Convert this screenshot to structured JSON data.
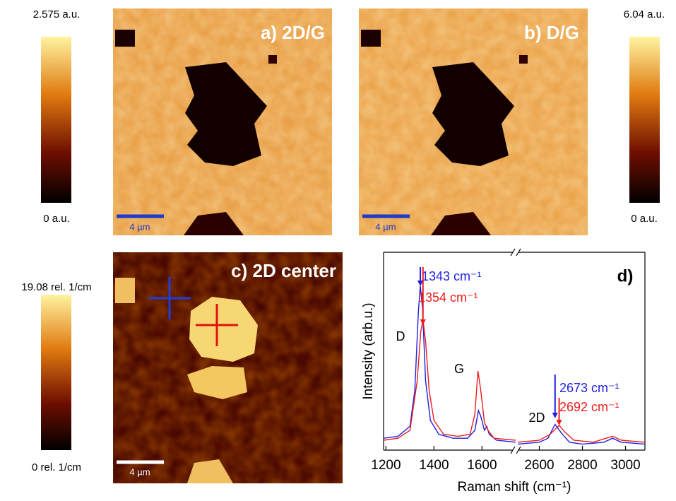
{
  "maps": [
    {
      "label": "a) 2D/G",
      "scale_bar": "4 µm"
    },
    {
      "label": "b) D/G",
      "scale_bar": "4 µm"
    },
    {
      "label": "c) 2D center",
      "scale_bar": "4 µm"
    }
  ],
  "colorbars": [
    {
      "max_label": "2.575 a.u.",
      "min_label": "0 a.u."
    },
    {
      "max_label": "6.04 a.u.",
      "min_label": "0 a.u."
    },
    {
      "max_label": "19.08 rel. 1/cm",
      "min_label": "0 rel. 1/cm"
    }
  ],
  "chart_data": {
    "type": "line",
    "panel_label": "d)",
    "x_label": "Raman shift (cm⁻¹)",
    "y_label": "Intensity (arb.u.)",
    "xlim_segments": [
      [
        1190,
        1740
      ],
      [
        2500,
        3090
      ]
    ],
    "xticks": [
      1200,
      1400,
      1600,
      2600,
      2800,
      3000
    ],
    "ylim": [
      0,
      1
    ],
    "peak_labels": [
      "D",
      "G",
      "2D"
    ],
    "series": [
      {
        "color": "#1f1fe0",
        "x": [
          1190,
          1250,
          1300,
          1320,
          1335,
          1343,
          1352,
          1365,
          1385,
          1420,
          1480,
          1540,
          1570,
          1585,
          1595,
          1610,
          1620,
          1630,
          1660,
          1740,
          2000,
          2500,
          2600,
          2640,
          2673,
          2700,
          2740,
          2800,
          2900,
          2940,
          2980,
          3090
        ],
        "values": [
          0.06,
          0.07,
          0.12,
          0.3,
          0.7,
          0.83,
          0.72,
          0.35,
          0.15,
          0.08,
          0.06,
          0.06,
          0.1,
          0.2,
          0.17,
          0.1,
          0.12,
          0.08,
          0.05,
          0.04,
          null,
          0.03,
          0.04,
          0.06,
          0.13,
          0.09,
          0.04,
          0.03,
          0.04,
          0.06,
          0.04,
          0.03
        ]
      },
      {
        "color": "#ee1c1c",
        "x": [
          1190,
          1250,
          1300,
          1330,
          1345,
          1354,
          1365,
          1380,
          1400,
          1440,
          1500,
          1550,
          1570,
          1583,
          1595,
          1610,
          1625,
          1650,
          1740,
          2000,
          2500,
          2600,
          2650,
          2692,
          2720,
          2760,
          2850,
          2940,
          2980,
          3090
        ],
        "values": [
          0.05,
          0.06,
          0.1,
          0.35,
          0.6,
          0.66,
          0.55,
          0.3,
          0.15,
          0.08,
          0.07,
          0.08,
          0.18,
          0.4,
          0.3,
          0.14,
          0.1,
          0.06,
          0.05,
          null,
          0.04,
          0.05,
          0.08,
          0.125,
          0.09,
          0.05,
          0.04,
          0.07,
          0.05,
          0.04
        ]
      }
    ],
    "annotations": [
      {
        "text": "1343 cm⁻¹",
        "x": 1343,
        "color": "#1f1fe0"
      },
      {
        "text": "1354 cm⁻¹",
        "x": 1354,
        "color": "#ee1c1c"
      },
      {
        "text": "2673 cm⁻¹",
        "x": 2673,
        "color": "#1f1fe0"
      },
      {
        "text": "2692 cm⁻¹",
        "x": 2692,
        "color": "#ee1c1c"
      }
    ]
  }
}
